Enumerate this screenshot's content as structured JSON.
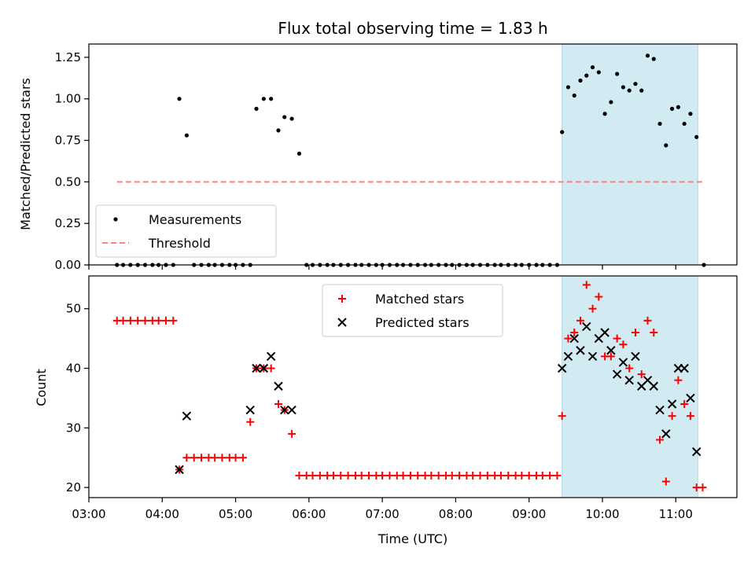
{
  "chart_data": [
    {
      "type": "scatter",
      "title": "Flux total observing time = 1.83 h",
      "xlabel": "",
      "ylabel": "Matched/Predicted stars",
      "xlim": [
        "03:00",
        "11:50"
      ],
      "ylim": [
        0,
        1.33
      ],
      "yticks": [
        "0.00",
        "0.25",
        "0.50",
        "0.75",
        "1.00",
        "1.25"
      ],
      "highlight_span": {
        "x_start": "09:27",
        "x_end": "11:18",
        "color": "#add8e6"
      },
      "legend_position": "lower-left",
      "series": [
        {
          "name": "Measurements",
          "marker": "dot",
          "color": "#000000",
          "points": [
            [
              "03:23",
              0
            ],
            [
              "03:28",
              0
            ],
            [
              "03:34",
              0
            ],
            [
              "03:40",
              0
            ],
            [
              "03:46",
              0
            ],
            [
              "03:52",
              0
            ],
            [
              "03:57",
              0
            ],
            [
              "04:03",
              0
            ],
            [
              "04:09",
              0
            ],
            [
              "04:14",
              1.0
            ],
            [
              "04:20",
              0.78
            ],
            [
              "04:26",
              0
            ],
            [
              "04:32",
              0
            ],
            [
              "04:38",
              0
            ],
            [
              "04:43",
              0
            ],
            [
              "04:49",
              0
            ],
            [
              "04:55",
              0
            ],
            [
              "05:00",
              0
            ],
            [
              "05:06",
              0
            ],
            [
              "05:12",
              0
            ],
            [
              "05:17",
              0.94
            ],
            [
              "05:23",
              1.0
            ],
            [
              "05:29",
              1.0
            ],
            [
              "05:35",
              0.81
            ],
            [
              "05:40",
              0.89
            ],
            [
              "05:46",
              0.88
            ],
            [
              "05:52",
              0.67
            ],
            [
              "05:58",
              0
            ],
            [
              "06:03",
              0
            ],
            [
              "06:09",
              0
            ],
            [
              "06:15",
              0
            ],
            [
              "06:20",
              0
            ],
            [
              "06:26",
              0
            ],
            [
              "06:32",
              0
            ],
            [
              "06:38",
              0
            ],
            [
              "06:43",
              0
            ],
            [
              "06:49",
              0
            ],
            [
              "06:55",
              0
            ],
            [
              "07:00",
              0
            ],
            [
              "07:06",
              0
            ],
            [
              "07:12",
              0
            ],
            [
              "07:17",
              0
            ],
            [
              "07:23",
              0
            ],
            [
              "07:29",
              0
            ],
            [
              "07:35",
              0
            ],
            [
              "07:40",
              0
            ],
            [
              "07:46",
              0
            ],
            [
              "07:52",
              0
            ],
            [
              "07:57",
              0
            ],
            [
              "08:03",
              0
            ],
            [
              "08:09",
              0
            ],
            [
              "08:14",
              0
            ],
            [
              "08:20",
              0
            ],
            [
              "08:26",
              0
            ],
            [
              "08:32",
              0
            ],
            [
              "08:37",
              0
            ],
            [
              "08:43",
              0
            ],
            [
              "08:49",
              0
            ],
            [
              "08:54",
              0
            ],
            [
              "09:00",
              0
            ],
            [
              "09:06",
              0
            ],
            [
              "09:11",
              0
            ],
            [
              "09:17",
              0
            ],
            [
              "09:23",
              0
            ],
            [
              "09:27",
              0.8
            ],
            [
              "09:32",
              1.07
            ],
            [
              "09:37",
              1.02
            ],
            [
              "09:42",
              1.11
            ],
            [
              "09:47",
              1.14
            ],
            [
              "09:52",
              1.19
            ],
            [
              "09:57",
              1.16
            ],
            [
              "10:02",
              0.91
            ],
            [
              "10:07",
              0.98
            ],
            [
              "10:12",
              1.15
            ],
            [
              "10:17",
              1.07
            ],
            [
              "10:22",
              1.05
            ],
            [
              "10:27",
              1.09
            ],
            [
              "10:32",
              1.05
            ],
            [
              "10:37",
              1.26
            ],
            [
              "10:42",
              1.24
            ],
            [
              "10:47",
              0.85
            ],
            [
              "10:52",
              0.72
            ],
            [
              "10:57",
              0.94
            ],
            [
              "11:02",
              0.95
            ],
            [
              "11:07",
              0.85
            ],
            [
              "11:12",
              0.91
            ],
            [
              "11:17",
              0.77
            ],
            [
              "11:23",
              0
            ]
          ]
        },
        {
          "name": "Threshold",
          "marker": "dashed-line",
          "color": "#ff7f7f",
          "points": [
            [
              "03:23",
              0.5
            ],
            [
              "11:23",
              0.5
            ]
          ]
        }
      ]
    },
    {
      "type": "scatter",
      "title": "",
      "xlabel": "Time (UTC)",
      "ylabel": "Count",
      "xlim": [
        "03:00",
        "11:50"
      ],
      "ylim": [
        18.3,
        55.5
      ],
      "yticks": [
        "20",
        "30",
        "40",
        "50"
      ],
      "xticks": [
        "03:00",
        "04:00",
        "05:00",
        "06:00",
        "07:00",
        "08:00",
        "09:00",
        "10:00",
        "11:00"
      ],
      "highlight_span": {
        "x_start": "09:27",
        "x_end": "11:18",
        "color": "#add8e6"
      },
      "legend_position": "upper-center",
      "series": [
        {
          "name": "Matched stars",
          "marker": "plus",
          "color": "#ff0000",
          "points": [
            [
              "03:23",
              48
            ],
            [
              "03:28",
              48
            ],
            [
              "03:34",
              48
            ],
            [
              "03:40",
              48
            ],
            [
              "03:46",
              48
            ],
            [
              "03:52",
              48
            ],
            [
              "03:57",
              48
            ],
            [
              "04:03",
              48
            ],
            [
              "04:09",
              48
            ],
            [
              "04:14",
              23
            ],
            [
              "04:20",
              25
            ],
            [
              "04:26",
              25
            ],
            [
              "04:32",
              25
            ],
            [
              "04:38",
              25
            ],
            [
              "04:43",
              25
            ],
            [
              "04:49",
              25
            ],
            [
              "04:55",
              25
            ],
            [
              "05:00",
              25
            ],
            [
              "05:06",
              25
            ],
            [
              "05:12",
              31
            ],
            [
              "05:17",
              40
            ],
            [
              "05:23",
              40
            ],
            [
              "05:29",
              40
            ],
            [
              "05:35",
              34
            ],
            [
              "05:40",
              33
            ],
            [
              "05:46",
              29
            ],
            [
              "05:52",
              22
            ],
            [
              "05:58",
              22
            ],
            [
              "06:03",
              22
            ],
            [
              "06:09",
              22
            ],
            [
              "06:15",
              22
            ],
            [
              "06:20",
              22
            ],
            [
              "06:26",
              22
            ],
            [
              "06:32",
              22
            ],
            [
              "06:38",
              22
            ],
            [
              "06:43",
              22
            ],
            [
              "06:49",
              22
            ],
            [
              "06:55",
              22
            ],
            [
              "07:00",
              22
            ],
            [
              "07:06",
              22
            ],
            [
              "07:12",
              22
            ],
            [
              "07:17",
              22
            ],
            [
              "07:23",
              22
            ],
            [
              "07:29",
              22
            ],
            [
              "07:35",
              22
            ],
            [
              "07:40",
              22
            ],
            [
              "07:46",
              22
            ],
            [
              "07:52",
              22
            ],
            [
              "07:57",
              22
            ],
            [
              "08:03",
              22
            ],
            [
              "08:09",
              22
            ],
            [
              "08:14",
              22
            ],
            [
              "08:20",
              22
            ],
            [
              "08:26",
              22
            ],
            [
              "08:32",
              22
            ],
            [
              "08:37",
              22
            ],
            [
              "08:43",
              22
            ],
            [
              "08:49",
              22
            ],
            [
              "08:54",
              22
            ],
            [
              "09:00",
              22
            ],
            [
              "09:06",
              22
            ],
            [
              "09:11",
              22
            ],
            [
              "09:17",
              22
            ],
            [
              "09:23",
              22
            ],
            [
              "09:27",
              32
            ],
            [
              "09:32",
              45
            ],
            [
              "09:37",
              46
            ],
            [
              "09:42",
              48
            ],
            [
              "09:47",
              54
            ],
            [
              "09:52",
              50
            ],
            [
              "09:57",
              52
            ],
            [
              "10:02",
              42
            ],
            [
              "10:07",
              42
            ],
            [
              "10:12",
              45
            ],
            [
              "10:17",
              44
            ],
            [
              "10:22",
              40
            ],
            [
              "10:27",
              46
            ],
            [
              "10:32",
              39
            ],
            [
              "10:37",
              48
            ],
            [
              "10:42",
              46
            ],
            [
              "10:47",
              28
            ],
            [
              "10:52",
              21
            ],
            [
              "10:57",
              32
            ],
            [
              "11:02",
              38
            ],
            [
              "11:07",
              34
            ],
            [
              "11:12",
              32
            ],
            [
              "11:17",
              20
            ],
            [
              "11:22",
              20
            ]
          ]
        },
        {
          "name": "Predicted stars",
          "marker": "x",
          "color": "#000000",
          "points": [
            [
              "04:14",
              23
            ],
            [
              "04:20",
              32
            ],
            [
              "05:12",
              33
            ],
            [
              "05:17",
              40
            ],
            [
              "05:23",
              40
            ],
            [
              "05:29",
              42
            ],
            [
              "05:35",
              37
            ],
            [
              "05:40",
              33
            ],
            [
              "05:46",
              33
            ],
            [
              "09:27",
              40
            ],
            [
              "09:32",
              42
            ],
            [
              "09:37",
              45
            ],
            [
              "09:42",
              43
            ],
            [
              "09:47",
              47
            ],
            [
              "09:52",
              42
            ],
            [
              "09:57",
              45
            ],
            [
              "10:02",
              46
            ],
            [
              "10:07",
              43
            ],
            [
              "10:12",
              39
            ],
            [
              "10:17",
              41
            ],
            [
              "10:22",
              38
            ],
            [
              "10:27",
              42
            ],
            [
              "10:32",
              37
            ],
            [
              "10:37",
              38
            ],
            [
              "10:42",
              37
            ],
            [
              "10:47",
              33
            ],
            [
              "10:52",
              29
            ],
            [
              "10:57",
              34
            ],
            [
              "11:02",
              40
            ],
            [
              "11:07",
              40
            ],
            [
              "11:12",
              35
            ],
            [
              "11:17",
              26
            ]
          ]
        }
      ]
    }
  ]
}
